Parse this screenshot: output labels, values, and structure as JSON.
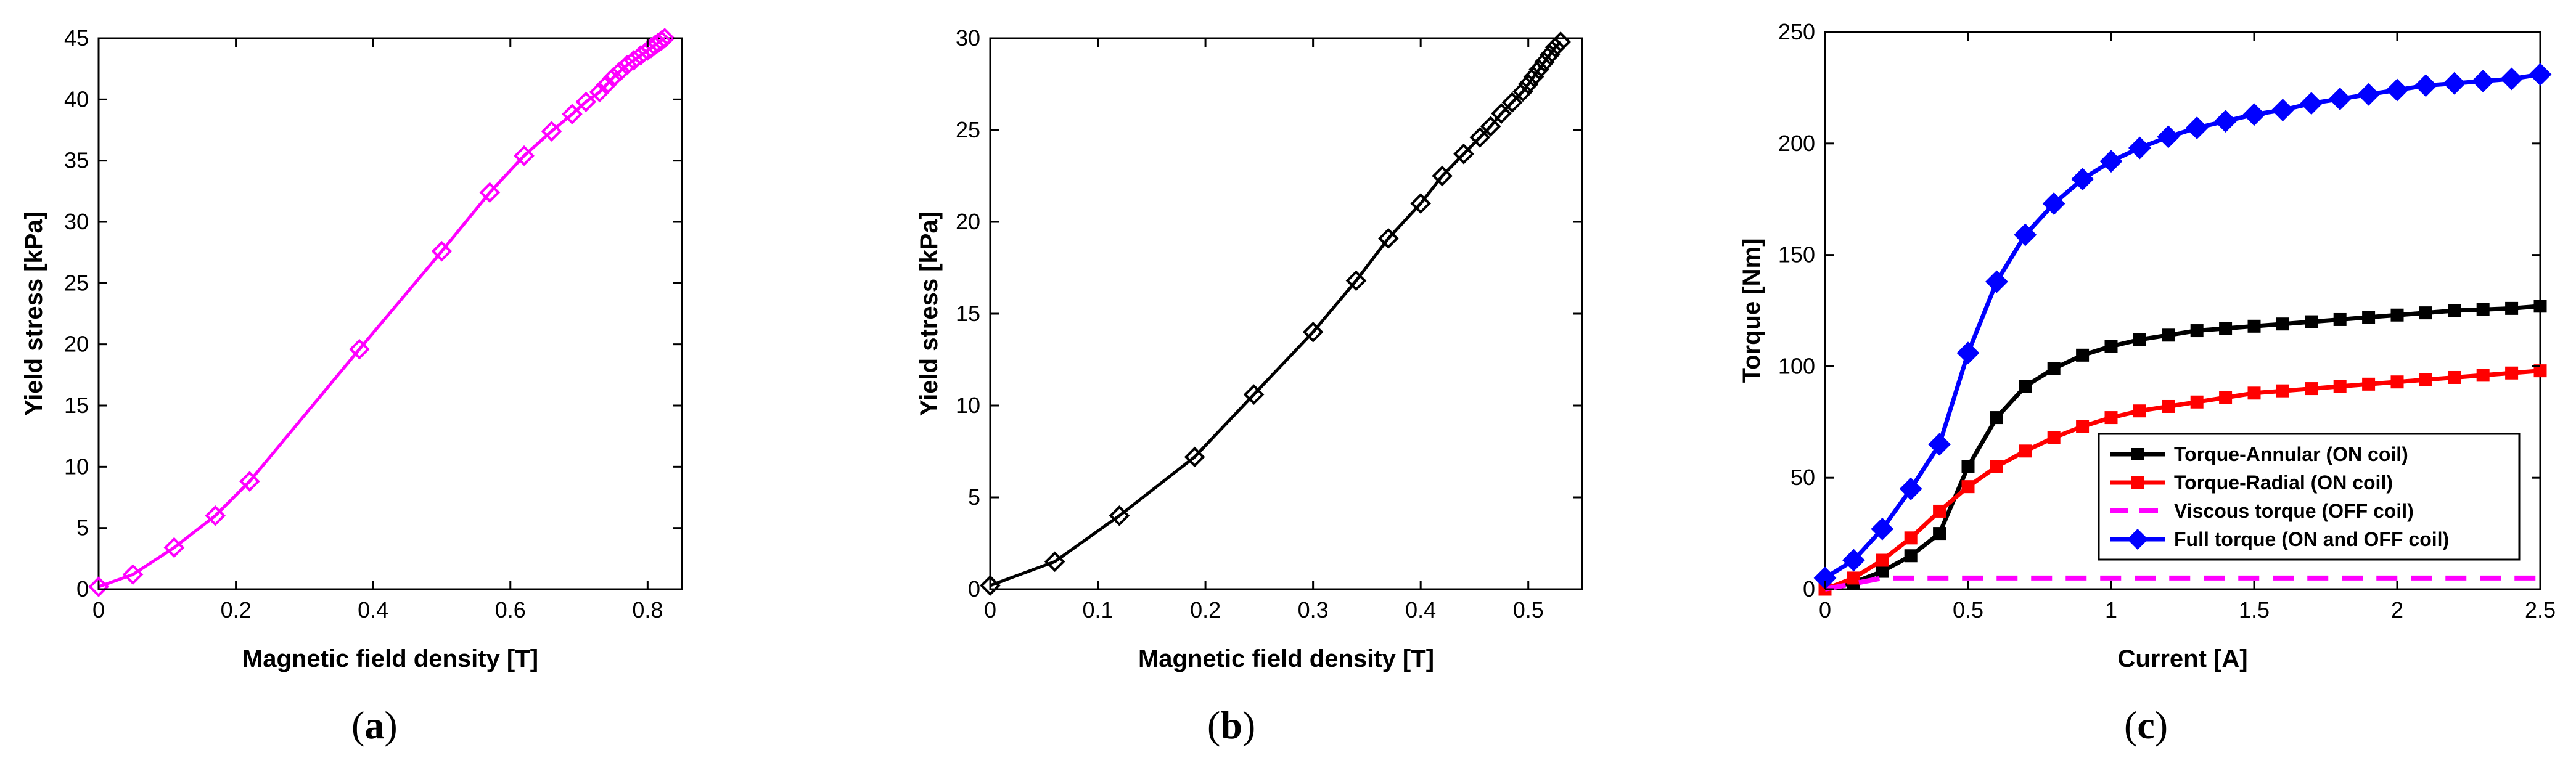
{
  "chart_data": [
    {
      "type": "line",
      "caption_open": "(",
      "caption_letter": "a",
      "caption_close": ")",
      "xlabel": "Magnetic field density [T]",
      "ylabel": "Yield stress [kPa]",
      "xlim": [
        0,
        0.85
      ],
      "ylim": [
        0,
        45
      ],
      "xticks": [
        0,
        0.2,
        0.4,
        0.6,
        0.8
      ],
      "xtick_labels": [
        "0",
        "0.2",
        "0.4",
        "0.6",
        "0.8"
      ],
      "yticks": [
        0,
        5,
        10,
        15,
        20,
        25,
        30,
        35,
        40,
        45
      ],
      "ytick_labels": [
        "0",
        "5",
        "10",
        "15",
        "20",
        "25",
        "30",
        "35",
        "40",
        "45"
      ],
      "grid": false,
      "legend": null,
      "series": [
        {
          "color": "#ff00ff",
          "marker": "diamond-open",
          "x": [
            0,
            0.05,
            0.11,
            0.17,
            0.22,
            0.38,
            0.5,
            0.57,
            0.62,
            0.66,
            0.69,
            0.71,
            0.73,
            0.74,
            0.75,
            0.76,
            0.77,
            0.78,
            0.79,
            0.8,
            0.805,
            0.81,
            0.815,
            0.82,
            0.825
          ],
          "y": [
            0.2,
            1.2,
            3.4,
            6,
            8.8,
            19.6,
            27.6,
            32.4,
            35.4,
            37.4,
            38.8,
            39.8,
            40.6,
            41.2,
            41.8,
            42.3,
            42.8,
            43.2,
            43.6,
            44,
            44.2,
            44.4,
            44.6,
            44.8,
            45
          ]
        }
      ]
    },
    {
      "type": "line",
      "caption_open": "(",
      "caption_letter": "b",
      "caption_close": ")",
      "xlabel": "Magnetic field density [T]",
      "ylabel": "Yield stress [kPa]",
      "xlim": [
        0,
        0.55
      ],
      "ylim": [
        0,
        30
      ],
      "xticks": [
        0,
        0.1,
        0.2,
        0.3,
        0.4,
        0.5
      ],
      "xtick_labels": [
        "0",
        "0.1",
        "0.2",
        "0.3",
        "0.4",
        "0.5"
      ],
      "yticks": [
        0,
        5,
        10,
        15,
        20,
        25,
        30
      ],
      "ytick_labels": [
        "0",
        "5",
        "10",
        "15",
        "20",
        "25",
        "30"
      ],
      "grid": false,
      "legend": null,
      "series": [
        {
          "color": "#000000",
          "marker": "diamond-open",
          "x": [
            0,
            0.06,
            0.12,
            0.19,
            0.245,
            0.3,
            0.34,
            0.37,
            0.4,
            0.42,
            0.44,
            0.455,
            0.465,
            0.475,
            0.485,
            0.495,
            0.5,
            0.505,
            0.51,
            0.515,
            0.52,
            0.525,
            0.53
          ],
          "y": [
            0.2,
            1.5,
            4,
            7.2,
            10.6,
            14,
            16.8,
            19.1,
            21,
            22.5,
            23.7,
            24.6,
            25.2,
            25.9,
            26.5,
            27.1,
            27.5,
            27.9,
            28.3,
            28.7,
            29.1,
            29.5,
            29.8
          ]
        }
      ]
    },
    {
      "type": "line",
      "caption_open": "(",
      "caption_letter": "c",
      "caption_close": ")",
      "xlabel": "Current [A]",
      "ylabel": "Torque [Nm]",
      "xlim": [
        0,
        2.5
      ],
      "ylim": [
        0,
        250
      ],
      "xticks": [
        0,
        0.5,
        1,
        1.5,
        2,
        2.5
      ],
      "xtick_labels": [
        "0",
        "0.5",
        "1",
        "1.5",
        "2",
        "2.5"
      ],
      "yticks": [
        0,
        50,
        100,
        150,
        200,
        250
      ],
      "ytick_labels": [
        "0",
        "50",
        "100",
        "150",
        "200",
        "250"
      ],
      "grid": false,
      "legend": "lower-right",
      "series": [
        {
          "name": "Torque-Annular (ON coil)",
          "color": "#000000",
          "marker": "square",
          "dash": "solid",
          "x": [
            0,
            0.1,
            0.2,
            0.3,
            0.4,
            0.5,
            0.6,
            0.7,
            0.8,
            0.9,
            1,
            1.1,
            1.2,
            1.3,
            1.4,
            1.5,
            1.6,
            1.7,
            1.8,
            1.9,
            2,
            2.1,
            2.2,
            2.3,
            2.4,
            2.5
          ],
          "y": [
            0,
            3,
            8,
            15,
            25,
            55,
            77,
            91,
            99,
            105,
            109,
            112,
            114,
            116,
            117,
            118,
            119,
            120,
            121,
            122,
            123,
            124,
            125,
            125.5,
            126,
            127
          ]
        },
        {
          "name": "Torque-Radial (ON coil)",
          "color": "#ff0000",
          "marker": "square",
          "dash": "solid",
          "x": [
            0,
            0.1,
            0.2,
            0.3,
            0.4,
            0.5,
            0.6,
            0.7,
            0.8,
            0.9,
            1,
            1.1,
            1.2,
            1.3,
            1.4,
            1.5,
            1.6,
            1.7,
            1.8,
            1.9,
            2,
            2.1,
            2.2,
            2.3,
            2.4,
            2.5
          ],
          "y": [
            0,
            5,
            13,
            23,
            35,
            46,
            55,
            62,
            68,
            73,
            77,
            80,
            82,
            84,
            86,
            88,
            89,
            90,
            91,
            92,
            93,
            94,
            95,
            96,
            97,
            98
          ]
        },
        {
          "name": "Viscous torque (OFF coil)",
          "color": "#ff00ff",
          "marker": "none",
          "dash": "dashed",
          "x": [
            0,
            0.2,
            2.5
          ],
          "y": [
            0,
            5,
            5
          ]
        },
        {
          "name": "Full torque (ON and OFF coil)",
          "color": "#0000ff",
          "marker": "diamond",
          "dash": "solid",
          "x": [
            0,
            0.1,
            0.2,
            0.3,
            0.4,
            0.5,
            0.6,
            0.7,
            0.8,
            0.9,
            1,
            1.1,
            1.2,
            1.3,
            1.4,
            1.5,
            1.6,
            1.7,
            1.8,
            1.9,
            2,
            2.1,
            2.2,
            2.3,
            2.4,
            2.5
          ],
          "y": [
            5,
            13,
            27,
            45,
            65,
            106,
            138,
            159,
            173,
            184,
            192,
            198,
            203,
            207,
            210,
            213,
            215,
            218,
            220,
            222,
            224,
            226,
            227,
            228,
            229,
            231
          ]
        }
      ]
    }
  ]
}
